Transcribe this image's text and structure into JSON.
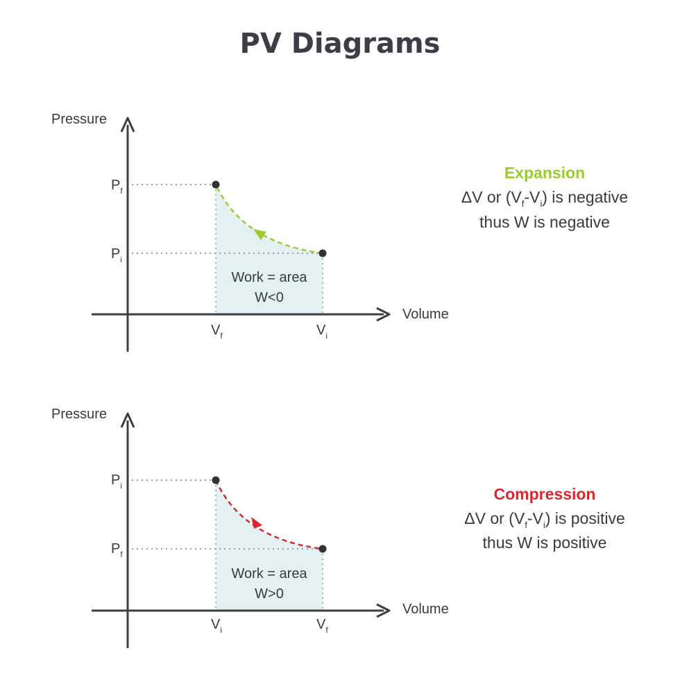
{
  "title": "PV Diagrams",
  "colors": {
    "axis": "#3b3f45",
    "guide": "#9a9a9a",
    "area_fill": "#e3f1f2",
    "area_edge": "#8fb8b6",
    "expansion": "#9ccc2c",
    "compression": "#d7282f"
  },
  "expansion": {
    "y_axis_label": "Pressure",
    "x_axis_label": "Volume",
    "p_top": {
      "main": "P",
      "sub": "f"
    },
    "p_bottom": {
      "main": "P",
      "sub": "i"
    },
    "v_left": {
      "main": "V",
      "sub": "f"
    },
    "v_right": {
      "main": "V",
      "sub": "i"
    },
    "area_line1": "Work = area",
    "area_line2": "W<0",
    "heading": "Expansion",
    "desc_a": "ΔV or (V",
    "desc_sub1": "f",
    "desc_b": "-V",
    "desc_sub2": "i",
    "desc_c": ") is negative",
    "desc_line2": "thus W is negative"
  },
  "compression": {
    "y_axis_label": "Pressure",
    "x_axis_label": "Volume",
    "p_top": {
      "main": "P",
      "sub": "i"
    },
    "p_bottom": {
      "main": "P",
      "sub": "f"
    },
    "v_left": {
      "main": "V",
      "sub": "i"
    },
    "v_right": {
      "main": "V",
      "sub": "f"
    },
    "area_line1": "Work = area",
    "area_line2": "W>0",
    "heading": "Compression",
    "desc_a": "ΔV or (V",
    "desc_sub1": "f",
    "desc_b": "-V",
    "desc_sub2": "i",
    "desc_c": ") is positive",
    "desc_line2": "thus W is positive"
  }
}
